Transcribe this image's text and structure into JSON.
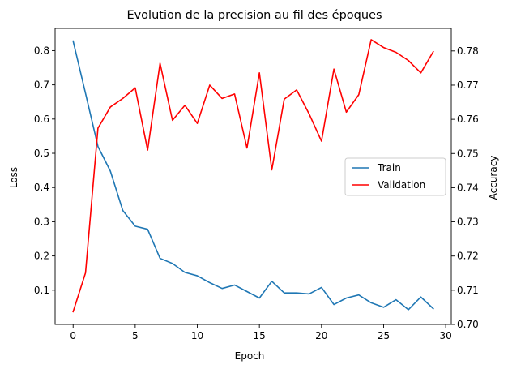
{
  "chart_data": {
    "type": "line",
    "title": "Evolution de la precision au fil des époques",
    "xlabel": "Epoch",
    "ylabel_left": "Loss",
    "ylabel_right": "Accuracy",
    "xlim": [
      -1.45,
      30.45
    ],
    "ylim_left": [
      0.0,
      0.865
    ],
    "ylim_right": [
      0.7,
      0.7866
    ],
    "x_ticks": [
      0,
      5,
      10,
      15,
      20,
      25,
      30
    ],
    "y_left_ticks": [
      0.1,
      0.2,
      0.3,
      0.4,
      0.5,
      0.6,
      0.7,
      0.8
    ],
    "y_right_ticks": [
      0.7,
      0.71,
      0.72,
      0.73,
      0.74,
      0.75,
      0.76,
      0.77,
      0.78
    ],
    "legend_position": "center-right",
    "grid": false,
    "x": [
      0,
      1,
      2,
      3,
      4,
      5,
      6,
      7,
      8,
      9,
      10,
      11,
      12,
      13,
      14,
      15,
      16,
      17,
      18,
      19,
      20,
      21,
      22,
      23,
      24,
      25,
      26,
      27,
      28,
      29
    ],
    "series": [
      {
        "name": "Train",
        "axis": "left",
        "color": "#1f77b4",
        "values": [
          0.828,
          0.675,
          0.52,
          0.448,
          0.333,
          0.287,
          0.278,
          0.193,
          0.178,
          0.152,
          0.142,
          0.122,
          0.105,
          0.115,
          0.096,
          0.077,
          0.126,
          0.092,
          0.092,
          0.089,
          0.108,
          0.058,
          0.077,
          0.086,
          0.063,
          0.05,
          0.072,
          0.043,
          0.08,
          0.046
        ]
      },
      {
        "name": "Validation",
        "axis": "right",
        "color": "#ff0000",
        "values": [
          0.7037,
          0.7151,
          0.7574,
          0.7636,
          0.7661,
          0.7692,
          0.751,
          0.7764,
          0.7597,
          0.7641,
          0.7588,
          0.77,
          0.7661,
          0.7674,
          0.7516,
          0.7736,
          0.7452,
          0.7659,
          0.7686,
          0.7616,
          0.7536,
          0.7747,
          0.7621,
          0.7672,
          0.7833,
          0.781,
          0.7796,
          0.7772,
          0.7736,
          0.7798
        ]
      }
    ]
  }
}
